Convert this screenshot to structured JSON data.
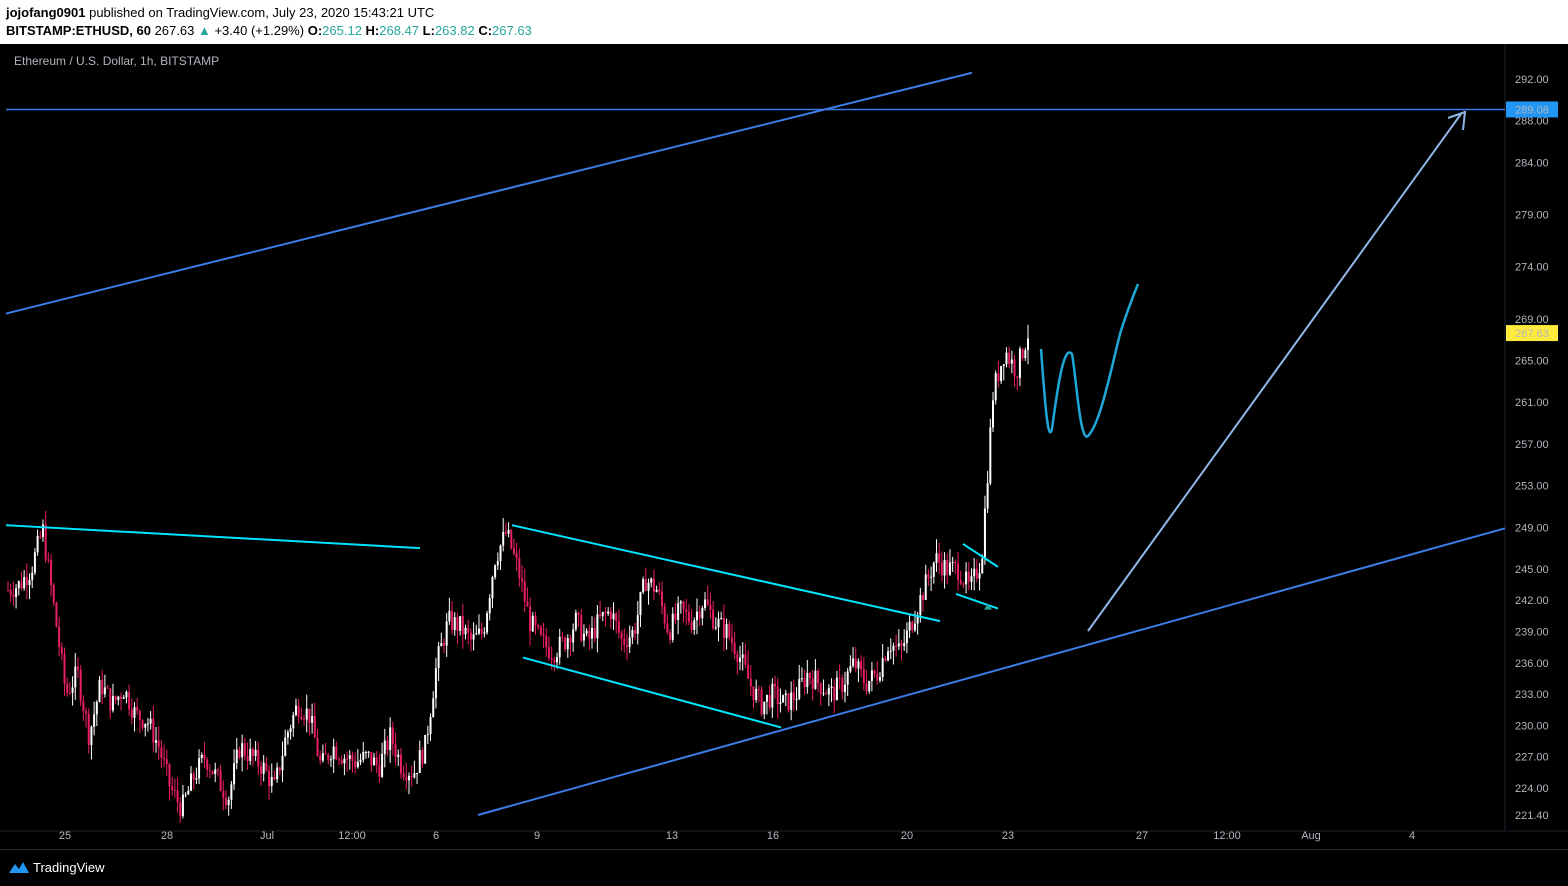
{
  "header": {
    "user": "jojofang0901",
    "published_text": "published on TradingView.com, July 23, 2020 15:43:21 UTC",
    "symbol": "BITSTAMP:ETHUSD, 60",
    "last": "267.63",
    "change_arrow": "▲",
    "change": "+3.40 (+1.29%)",
    "o_label": "O:",
    "o_value": "265.12",
    "h_label": "H:",
    "h_value": "268.47",
    "l_label": "L:",
    "l_value": "263.82",
    "c_label": "C:",
    "c_value": "267.63"
  },
  "chart_title": "Ethereum / U.S. Dollar, 1h, BITSTAMP",
  "footer": {
    "brand": "TradingView",
    "logo_icon": "tradingview-logo-icon"
  },
  "colors": {
    "background": "#000000",
    "candle_up": "#ffffff",
    "candle_down": "#e91e63",
    "trend_blue": "#3d7be6",
    "cyan": "#00e5ff",
    "drawing_blue": "#1fa7d8",
    "arrow": "#8fb6e8",
    "price_tag_blue": "#2196f3",
    "price_tag_yellow": "#ffeb3b"
  },
  "chart_data": {
    "type": "candlestick",
    "y_ticks": [
      292.0,
      288.0,
      284.0,
      279.0,
      274.0,
      269.0,
      265.0,
      261.0,
      257.0,
      253.0,
      249.0,
      245.0,
      242.0,
      239.0,
      236.0,
      233.0,
      230.0,
      227.0,
      224.0,
      221.4
    ],
    "x_ticks": [
      "25",
      "28",
      "Jul",
      "12:00",
      "6",
      "9",
      "13",
      "16",
      "20",
      "23",
      "27",
      "12:00",
      "Aug",
      "4"
    ],
    "price_tags": [
      {
        "label": "289.08",
        "price": 289.08,
        "color": "#2196f3"
      },
      {
        "label": "267.63",
        "price": 267.63,
        "color": "#ffeb3b"
      }
    ],
    "series_anchor_prices": [
      [
        0,
        243
      ],
      [
        1,
        243.5
      ],
      [
        2,
        245
      ],
      [
        3,
        248.8
      ],
      [
        4,
        241
      ],
      [
        5,
        233
      ],
      [
        6,
        235
      ],
      [
        7,
        229
      ],
      [
        8,
        234
      ],
      [
        9,
        232
      ],
      [
        10,
        233.5
      ],
      [
        11,
        231
      ],
      [
        12,
        230.5
      ],
      [
        13,
        228
      ],
      [
        14,
        224
      ],
      [
        15,
        222
      ],
      [
        16,
        225
      ],
      [
        17,
        227
      ],
      [
        18,
        225
      ],
      [
        19,
        223
      ],
      [
        20,
        228
      ],
      [
        21,
        227
      ],
      [
        22,
        226
      ],
      [
        23,
        224
      ],
      [
        24,
        229
      ],
      [
        25,
        232
      ],
      [
        26,
        231
      ],
      [
        27,
        226
      ],
      [
        28,
        228
      ],
      [
        29,
        227
      ],
      [
        30,
        226.5
      ],
      [
        31,
        227
      ],
      [
        32,
        226
      ],
      [
        33,
        229
      ],
      [
        34,
        226
      ],
      [
        35,
        225.5
      ],
      [
        36,
        228
      ],
      [
        37,
        236
      ],
      [
        38,
        240
      ],
      [
        39,
        239.5
      ],
      [
        40,
        238
      ],
      [
        41,
        239
      ],
      [
        42,
        246
      ],
      [
        43,
        248.5
      ],
      [
        44,
        245
      ],
      [
        45,
        240
      ],
      [
        46,
        238
      ],
      [
        47,
        237
      ],
      [
        48,
        238
      ],
      [
        49,
        240
      ],
      [
        50,
        238
      ],
      [
        51,
        240
      ],
      [
        52,
        241
      ],
      [
        53,
        238
      ],
      [
        54,
        239
      ],
      [
        55,
        244
      ],
      [
        56,
        243
      ],
      [
        57,
        239
      ],
      [
        58,
        241
      ],
      [
        59,
        240
      ],
      [
        60,
        242
      ],
      [
        61,
        240
      ],
      [
        62,
        239
      ],
      [
        63,
        237
      ],
      [
        64,
        234
      ],
      [
        65,
        232
      ],
      [
        66,
        233
      ],
      [
        67,
        232
      ],
      [
        68,
        233
      ],
      [
        69,
        235
      ],
      [
        70,
        234
      ],
      [
        71,
        233
      ],
      [
        72,
        234
      ],
      [
        73,
        236
      ],
      [
        74,
        234
      ],
      [
        75,
        235
      ],
      [
        76,
        238
      ],
      [
        77,
        237
      ],
      [
        78,
        240
      ],
      [
        79,
        243
      ],
      [
        80,
        246
      ],
      [
        81,
        245
      ],
      [
        82,
        245
      ],
      [
        83,
        243
      ],
      [
        84,
        246
      ],
      [
        85,
        262
      ],
      [
        86,
        266
      ],
      [
        87,
        264
      ],
      [
        88,
        267.6
      ]
    ]
  },
  "annotations": {
    "upper_trend_start_price": 269.5,
    "upper_trend_end_price": 292.6,
    "upper_trend_end_at": "Jul 23",
    "horizontal_line_price": 289.08,
    "lower_trend_start_price": 221.4,
    "lower_trend_end_price": 248.9,
    "lower_trend_start_at": "Jul 7",
    "lower_trend_end_at": "Aug 5",
    "resistance_start_price": 249.2,
    "resistance_end_price": 247.0,
    "resistance_start_at": "Jun 23",
    "resistance_end_at": "Jul 3"
  }
}
